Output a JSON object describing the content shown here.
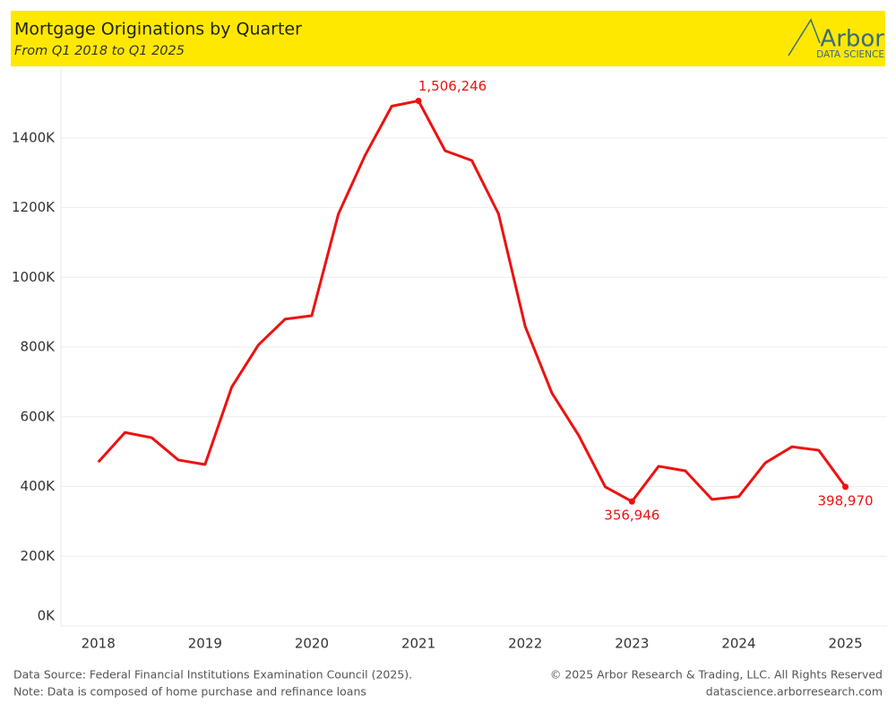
{
  "chart_data": {
    "type": "line",
    "title": "Mortgage Originations by Quarter",
    "subtitle": "From Q1 2018 to Q1 2025",
    "logo_name": "Arbor",
    "logo_tagline": "DATA SCIENCE",
    "source": "Data Source: Federal Financial Institutions Examination Council (2025).",
    "note": "Note: Data is composed of home purchase and refinance loans",
    "copyright": "© 2025 Arbor Research & Trading, LLC. All Rights Reserved",
    "website": "datascience.arborresearch.com",
    "x": [
      2018,
      2018.25,
      2018.5,
      2018.75,
      2019,
      2019.25,
      2019.5,
      2019.75,
      2020,
      2020.25,
      2020.5,
      2020.75,
      2021,
      2021.25,
      2021.5,
      2021.75,
      2022,
      2022.25,
      2022.5,
      2022.75,
      2023,
      2023.25,
      2023.5,
      2023.75,
      2024,
      2024.25,
      2024.5,
      2024.75,
      2025
    ],
    "xlim": [
      2017.65,
      2025.39
    ],
    "xticks": [
      2018,
      2019,
      2020,
      2021,
      2022,
      2023,
      2024,
      2025
    ],
    "ylim": [
      0,
      1600000
    ],
    "yticks": [
      {
        "value": 0,
        "label": "0K"
      },
      {
        "value": 200000,
        "label": "200K"
      },
      {
        "value": 400000,
        "label": "400K"
      },
      {
        "value": 600000,
        "label": "600K"
      },
      {
        "value": 800000,
        "label": "800K"
      },
      {
        "value": 1000000,
        "label": "1000K"
      },
      {
        "value": 1200000,
        "label": "1200K"
      },
      {
        "value": 1400000,
        "label": "1400K"
      }
    ],
    "grid": true,
    "series": [
      {
        "color": "#ee1111",
        "values": [
          470000,
          555000,
          540000,
          476000,
          463000,
          685000,
          806000,
          880000,
          890000,
          1182000,
          1350000,
          1491000,
          1506246,
          1363000,
          1335000,
          1182000,
          859000,
          668000,
          547000,
          399000,
          356946,
          458000,
          445000,
          363000,
          371000,
          468000,
          514000,
          504000,
          398970
        ],
        "value_labels": [
          null,
          null,
          null,
          null,
          null,
          null,
          null,
          null,
          null,
          null,
          null,
          null,
          "1,506,246",
          null,
          null,
          null,
          null,
          null,
          null,
          null,
          "356,946",
          null,
          null,
          null,
          null,
          null,
          null,
          null,
          "398,970"
        ]
      }
    ]
  }
}
